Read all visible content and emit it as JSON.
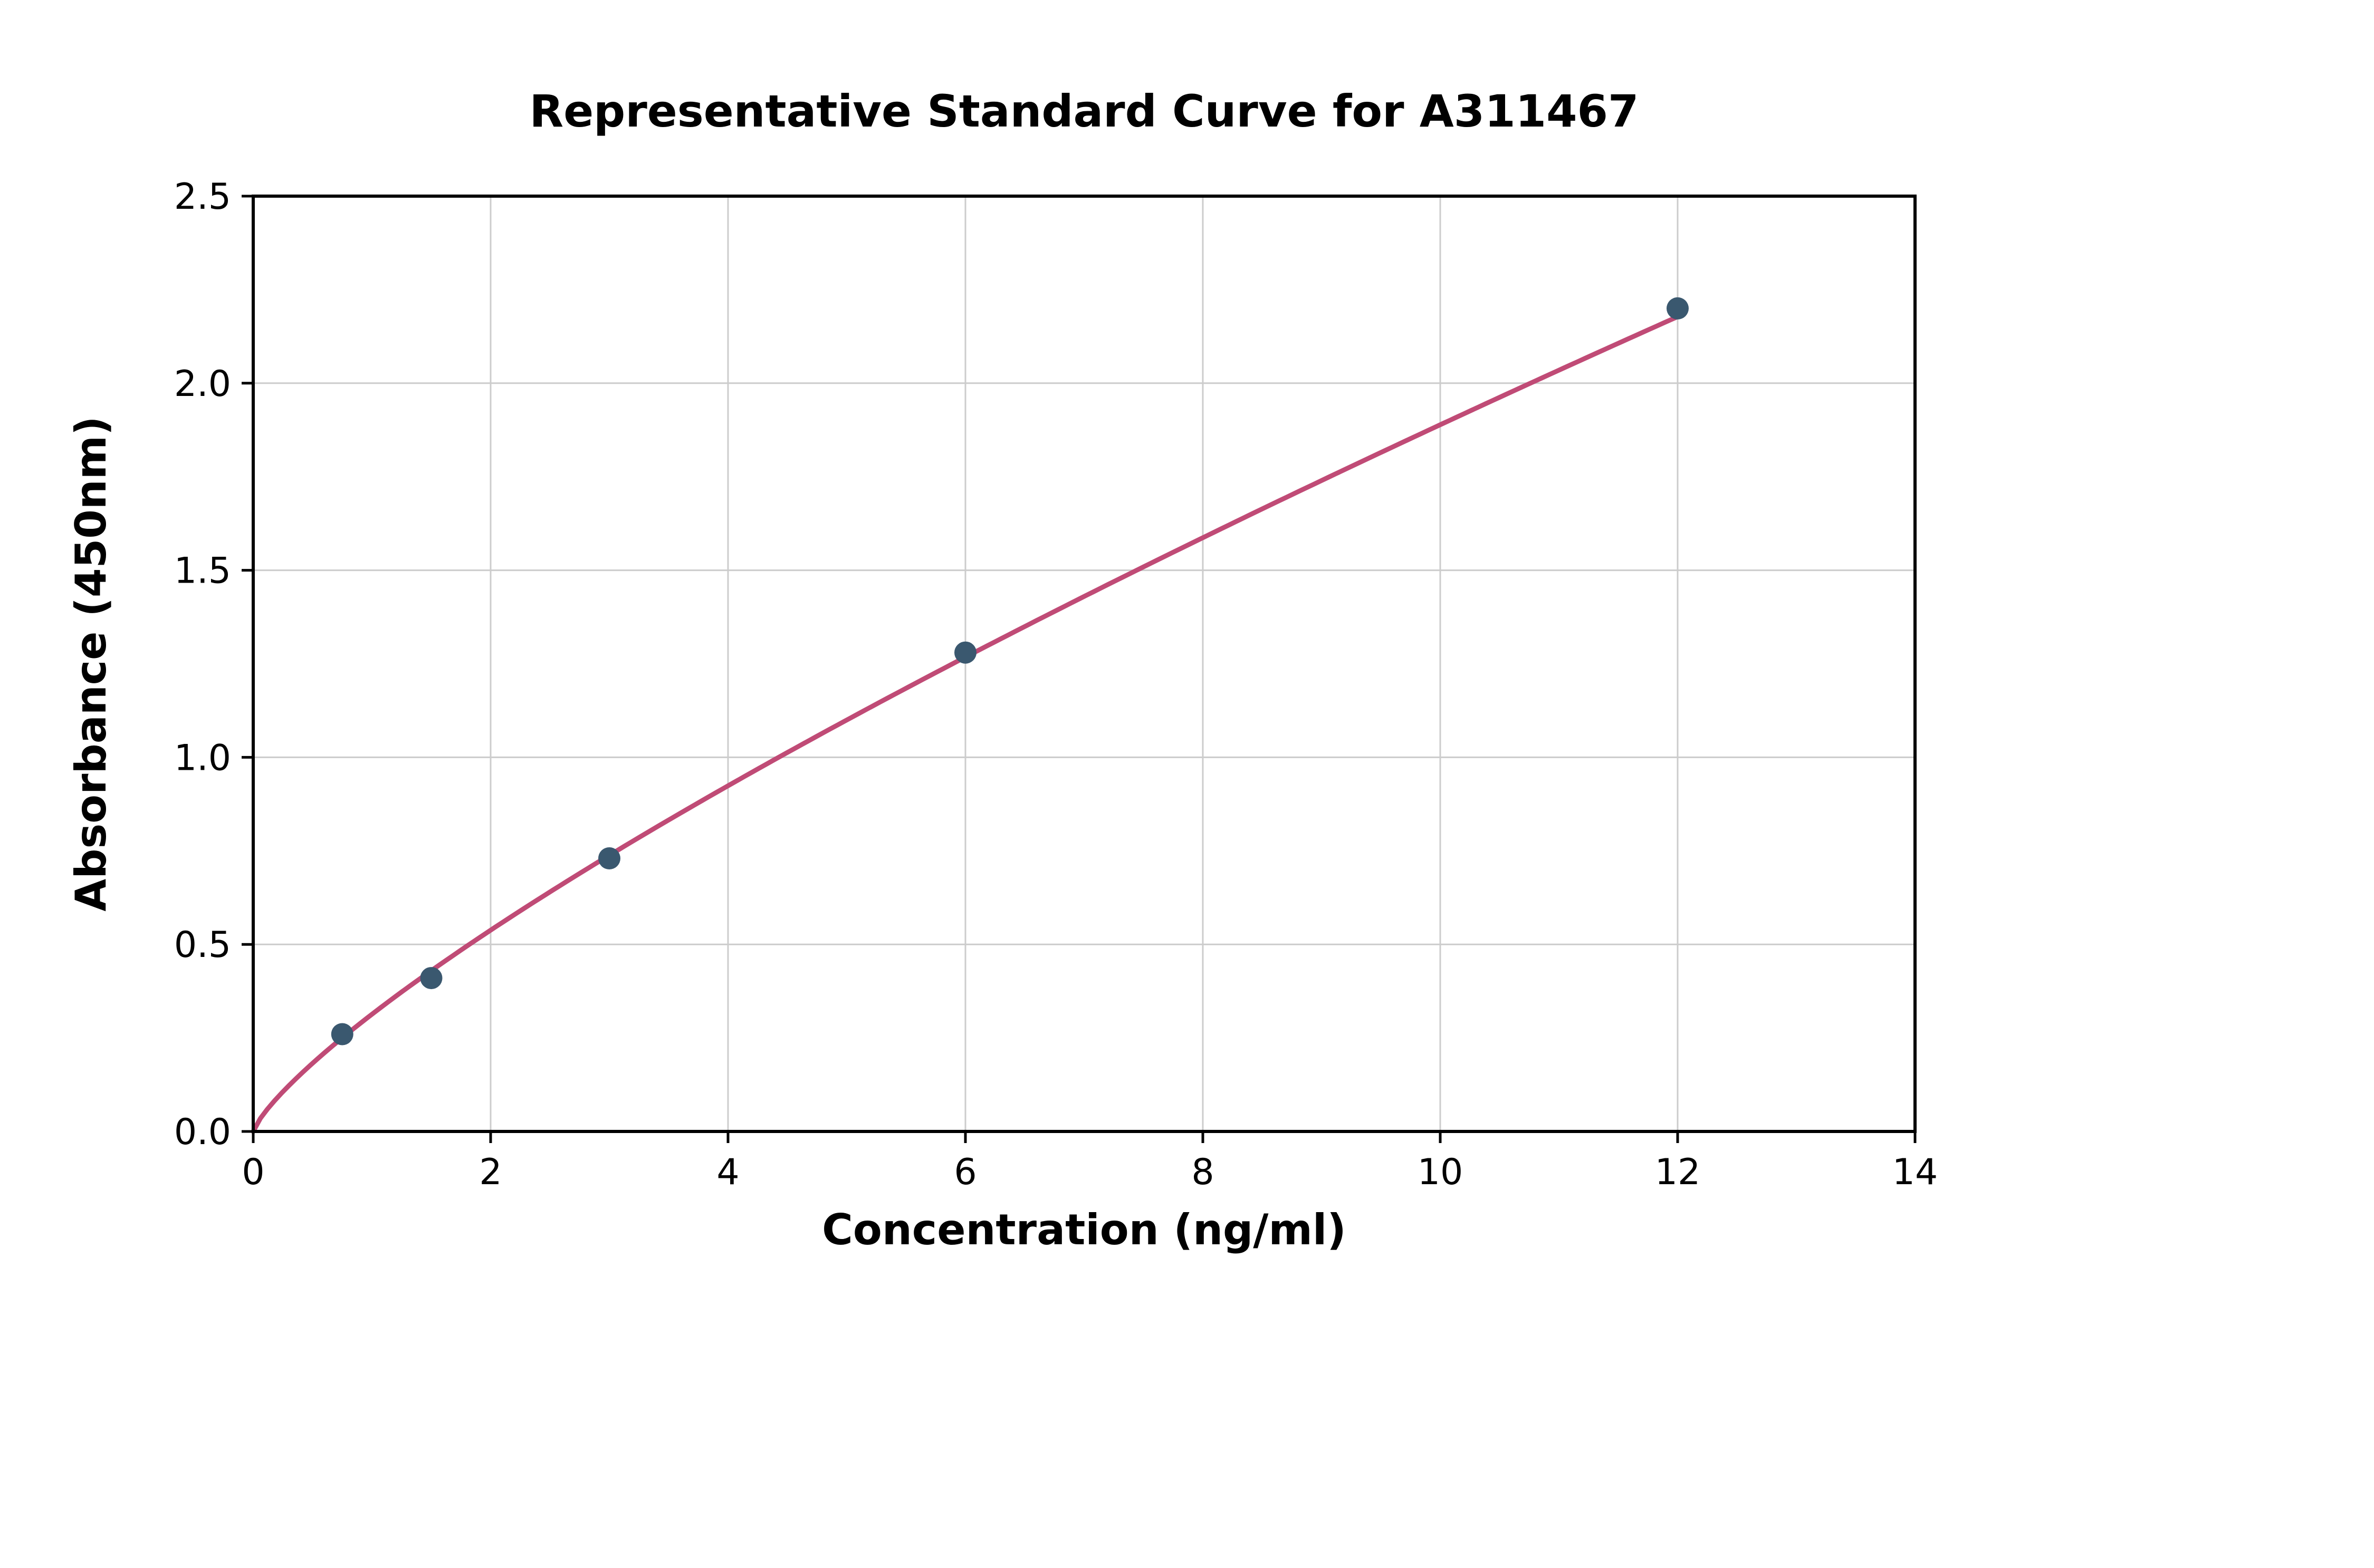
{
  "chart_data": {
    "type": "scatter",
    "title": "Representative Standard Curve for A311467",
    "xlabel": "Concentration (ng/ml)",
    "ylabel": "Absorbance (450nm)",
    "x": [
      0.75,
      1.5,
      3,
      6,
      12
    ],
    "y": [
      0.26,
      0.41,
      0.73,
      1.28,
      2.2
    ],
    "curve": {
      "style": "smooth power fit through points",
      "starts_at_origin": true,
      "x_start": 0,
      "x_end": 12
    },
    "xlim": [
      0,
      14
    ],
    "ylim": [
      0,
      2.5
    ],
    "xticks": [
      0,
      2,
      4,
      6,
      8,
      10,
      12,
      14
    ],
    "xtick_labels": [
      "0",
      "2",
      "4",
      "6",
      "8",
      "10",
      "12",
      "14"
    ],
    "yticks": [
      0,
      0.5,
      1.0,
      1.5,
      2.0,
      2.5
    ],
    "ytick_labels": [
      "0.0",
      "0.5",
      "1.0",
      "1.5",
      "2.0",
      "2.5"
    ],
    "grid": true,
    "legend": "none",
    "colors": {
      "curve": "#c04b76",
      "marker": "#3a586f",
      "grid": "#cccccc",
      "axis": "#000000",
      "background": "#ffffff",
      "text": "#000000"
    }
  }
}
